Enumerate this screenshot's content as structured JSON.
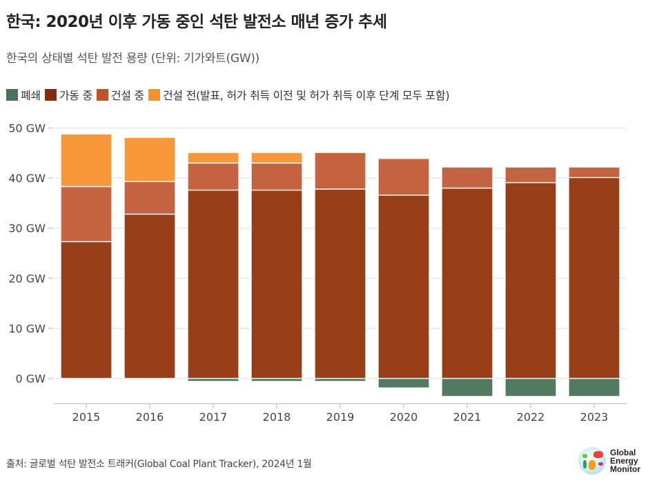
{
  "chart_data": {
    "type": "bar",
    "stacked": true,
    "title": "한국: 2020년 이후 가동 중인 석탄 발전소 매년 증가 추세",
    "subtitle": "한국의 상태별 석탄 발전 용량 (단위: 기가와트(GW))",
    "xlabel": "",
    "ylabel": "",
    "categories": [
      "2015",
      "2016",
      "2017",
      "2018",
      "2019",
      "2020",
      "2021",
      "2022",
      "2023"
    ],
    "series": [
      {
        "name": "폐쇄",
        "color": "#527a63",
        "values": [
          0,
          0,
          -0.6,
          -0.6,
          -0.6,
          -1.9,
          -3.6,
          -3.6,
          -3.6
        ]
      },
      {
        "name": "가동 중",
        "color": "#983f19",
        "values": [
          27.3,
          32.8,
          37.6,
          37.6,
          37.8,
          36.6,
          38.0,
          39.1,
          40.1
        ]
      },
      {
        "name": "건설 중",
        "color": "#c46341",
        "values": [
          11.0,
          6.5,
          5.4,
          5.4,
          7.3,
          7.3,
          4.2,
          3.1,
          2.1
        ]
      },
      {
        "name": "건설 전(발표, 허가 취득 이전 및 허가 취득 이후 단계 모두 포함)",
        "color": "#f7983b",
        "values": [
          10.5,
          8.8,
          2.1,
          2.1,
          0,
          0,
          0,
          0,
          0
        ]
      }
    ],
    "legend_colors": [
      "#4a7259",
      "#8b2a0a",
      "#c0532c",
      "#f7902a"
    ],
    "y_ticks": [
      0,
      10,
      20,
      30,
      40,
      50
    ],
    "y_tick_labels": [
      "0 GW",
      "10 GW",
      "20 GW",
      "30 GW",
      "40 GW",
      "50 GW"
    ],
    "ylim": [
      -5,
      50
    ],
    "grid": true,
    "legend_position": "top-left"
  },
  "source": "출처: 글로벌 석탄 발전소 트래커(Global Coal Plant Tracker), 2024년 1월",
  "logo": {
    "line1": "Global",
    "line2": "Energy",
    "line3": "Monitor"
  }
}
